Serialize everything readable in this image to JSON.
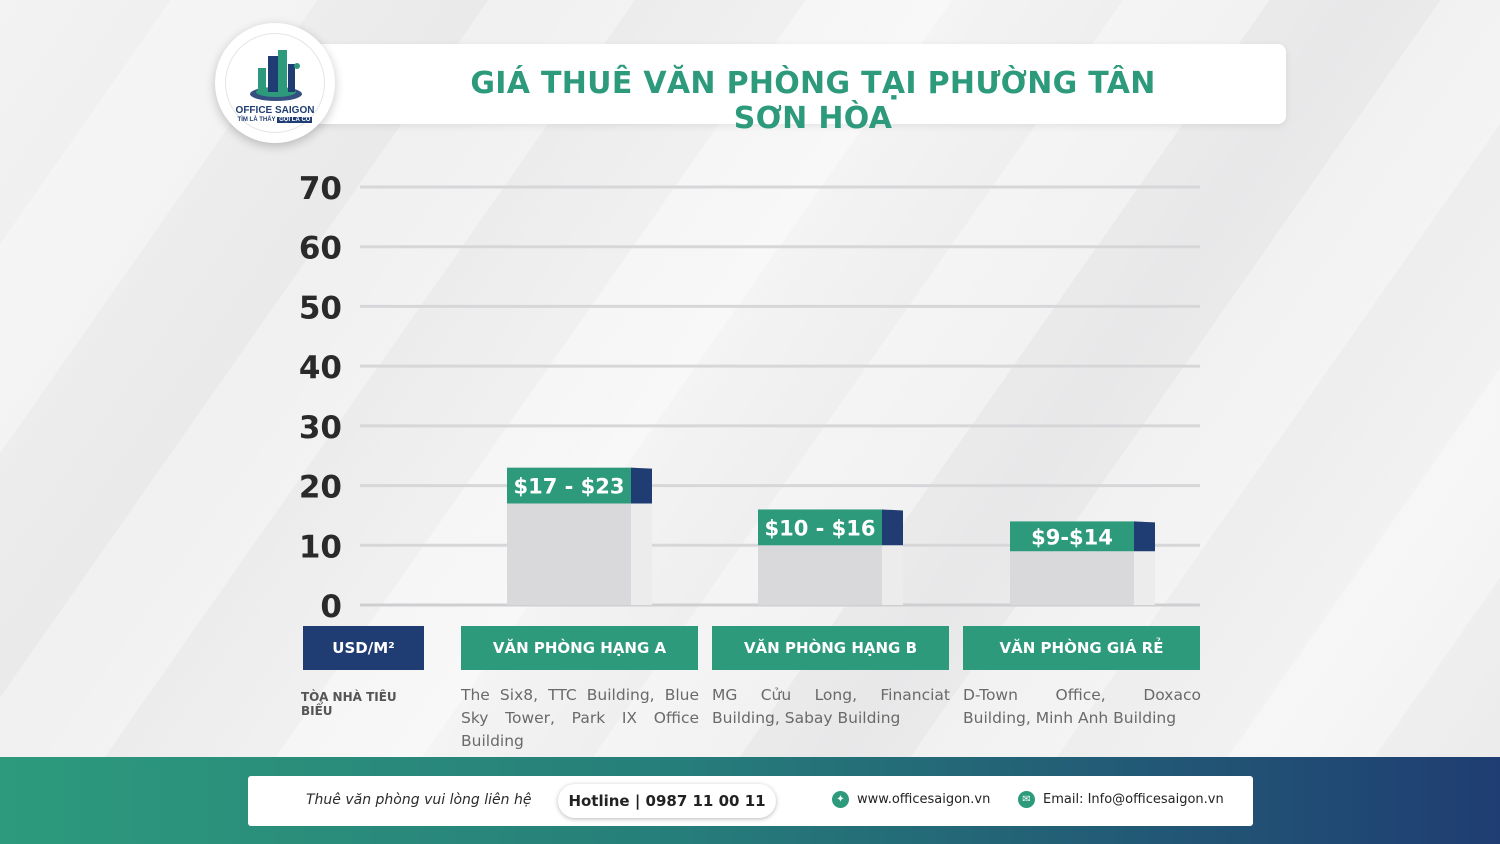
{
  "title": "GIÁ THUÊ VĂN PHÒNG TẠI PHƯỜNG TÂN SƠN HÒA",
  "logo": {
    "name": "OFFICE SAIGON",
    "slogan_a": "TÌM LÀ THẤY",
    "slogan_b": "GỌI LÀ CÓ"
  },
  "unit_label": "USD/M²",
  "row_label": "TÒA NHÀ TIÊU BIỂU",
  "chart_data": {
    "type": "bar",
    "ylim": [
      0,
      70
    ],
    "yticks": [
      0,
      10,
      20,
      30,
      40,
      50,
      60,
      70
    ],
    "grid": true,
    "categories": [
      "VĂN PHÒNG HẠNG A",
      "VĂN PHÒNG HẠNG B",
      "VĂN PHÒNG GIÁ RẺ"
    ],
    "series": [
      {
        "low": 17,
        "high": 23,
        "labels": [
          "$17 - $23",
          "$10 - $16",
          "$9-$14"
        ]
      }
    ],
    "ranges": [
      [
        17,
        23
      ],
      [
        10,
        16
      ],
      [
        9,
        14
      ]
    ],
    "buildings": [
      "The Six8, TTC Building, Blue Sky Tower, Park IX Office Building",
      "MG Cửu Long, Financiat Building, Sabay Building",
      "D-Town Office, Doxaco Building, Minh Anh Building"
    ]
  },
  "footer": {
    "contact_text": "Thuê văn phòng vui lòng liên hệ",
    "hotline": "Hotline | 0987 11 00 11",
    "website": "www.officesaigon.vn",
    "email": "Email: Info@officesaigon.vn"
  },
  "colors": {
    "accent": "#2d9a7c",
    "navy": "#1f3d72",
    "bar": "#d9d9db",
    "bar_side": "#ececed"
  }
}
